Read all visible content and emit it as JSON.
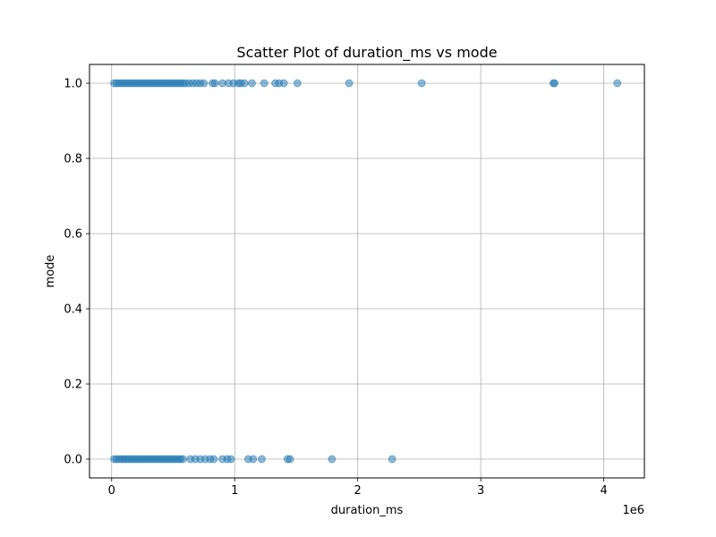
{
  "chart_data": {
    "type": "scatter",
    "title": "Scatter Plot of duration_ms vs mode",
    "xlabel": "duration_ms",
    "ylabel": "mode",
    "x_offset_label": "1e6",
    "xlim": [
      -180000,
      4330000
    ],
    "ylim": [
      -0.05,
      1.05
    ],
    "xticks": [
      0,
      1000000,
      2000000,
      3000000,
      4000000
    ],
    "xtick_labels": [
      "0",
      "1",
      "2",
      "3",
      "4"
    ],
    "yticks": [
      0.0,
      0.2,
      0.4,
      0.6,
      0.8,
      1.0
    ],
    "ytick_labels": [
      "0.0",
      "0.2",
      "0.4",
      "0.6",
      "0.8",
      "1.0"
    ],
    "grid": true,
    "point_color": "#1f77b4",
    "point_alpha": 0.5,
    "series": [
      {
        "points": [
          [
            20000,
            1
          ],
          [
            40000,
            1
          ],
          [
            60000,
            1
          ],
          [
            80000,
            1
          ],
          [
            100000,
            1
          ],
          [
            120000,
            1
          ],
          [
            140000,
            1
          ],
          [
            160000,
            1
          ],
          [
            180000,
            1
          ],
          [
            200000,
            1
          ],
          [
            220000,
            1
          ],
          [
            240000,
            1
          ],
          [
            260000,
            1
          ],
          [
            280000,
            1
          ],
          [
            300000,
            1
          ],
          [
            320000,
            1
          ],
          [
            340000,
            1
          ],
          [
            360000,
            1
          ],
          [
            380000,
            1
          ],
          [
            400000,
            1
          ],
          [
            420000,
            1
          ],
          [
            440000,
            1
          ],
          [
            460000,
            1
          ],
          [
            480000,
            1
          ],
          [
            500000,
            1
          ],
          [
            520000,
            1
          ],
          [
            540000,
            1
          ],
          [
            560000,
            1
          ],
          [
            580000,
            1
          ],
          [
            600000,
            1
          ],
          [
            630000,
            1
          ],
          [
            660000,
            1
          ],
          [
            690000,
            1
          ],
          [
            720000,
            1
          ],
          [
            750000,
            1
          ],
          [
            820000,
            1
          ],
          [
            840000,
            1
          ],
          [
            900000,
            1
          ],
          [
            950000,
            1
          ],
          [
            990000,
            1
          ],
          [
            1030000,
            1
          ],
          [
            1050000,
            1
          ],
          [
            1080000,
            1
          ],
          [
            1140000,
            1
          ],
          [
            1240000,
            1
          ],
          [
            1330000,
            1
          ],
          [
            1360000,
            1
          ],
          [
            1400000,
            1
          ],
          [
            1510000,
            1
          ],
          [
            1930000,
            1
          ],
          [
            2520000,
            1
          ],
          [
            3590000,
            1
          ],
          [
            3600000,
            1
          ],
          [
            4110000,
            1
          ],
          [
            20000,
            0
          ],
          [
            40000,
            0
          ],
          [
            60000,
            0
          ],
          [
            80000,
            0
          ],
          [
            100000,
            0
          ],
          [
            120000,
            0
          ],
          [
            140000,
            0
          ],
          [
            160000,
            0
          ],
          [
            180000,
            0
          ],
          [
            200000,
            0
          ],
          [
            220000,
            0
          ],
          [
            240000,
            0
          ],
          [
            260000,
            0
          ],
          [
            280000,
            0
          ],
          [
            300000,
            0
          ],
          [
            320000,
            0
          ],
          [
            340000,
            0
          ],
          [
            360000,
            0
          ],
          [
            380000,
            0
          ],
          [
            400000,
            0
          ],
          [
            420000,
            0
          ],
          [
            440000,
            0
          ],
          [
            460000,
            0
          ],
          [
            480000,
            0
          ],
          [
            500000,
            0
          ],
          [
            520000,
            0
          ],
          [
            540000,
            0
          ],
          [
            560000,
            0
          ],
          [
            580000,
            0
          ],
          [
            640000,
            0
          ],
          [
            680000,
            0
          ],
          [
            720000,
            0
          ],
          [
            760000,
            0
          ],
          [
            800000,
            0
          ],
          [
            830000,
            0
          ],
          [
            900000,
            0
          ],
          [
            940000,
            0
          ],
          [
            970000,
            0
          ],
          [
            1110000,
            0
          ],
          [
            1150000,
            0
          ],
          [
            1220000,
            0
          ],
          [
            1430000,
            0
          ],
          [
            1450000,
            0
          ],
          [
            1790000,
            0
          ],
          [
            2280000,
            0
          ]
        ]
      }
    ]
  }
}
